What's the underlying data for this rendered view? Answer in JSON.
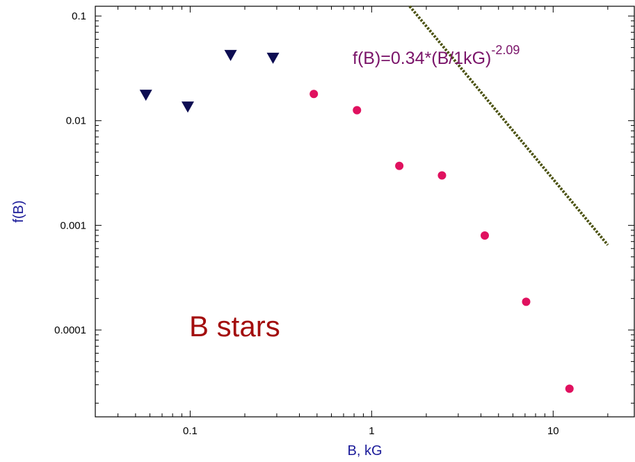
{
  "chart_data": {
    "type": "scatter",
    "title": "",
    "xlabel": "B, kG",
    "ylabel": "f(B)",
    "x_scale": "log",
    "y_scale": "log",
    "xlim": [
      0.03,
      28
    ],
    "ylim": [
      1.48e-05,
      0.124
    ],
    "grid": false,
    "x_ticks": [
      {
        "value": 0.1,
        "label": "0.1"
      },
      {
        "value": 1,
        "label": "1"
      },
      {
        "value": 10,
        "label": "10"
      }
    ],
    "y_ticks": [
      {
        "value": 0.1,
        "label": "0.1"
      },
      {
        "value": 0.01,
        "label": "0.01"
      },
      {
        "value": 0.001,
        "label": "0.001"
      },
      {
        "value": 0.0001,
        "label": "0.0001"
      }
    ],
    "series": [
      {
        "marker": "triangle-down",
        "color": "#0d0d52",
        "points": [
          {
            "x": 0.057,
            "y": 0.0175
          },
          {
            "x": 0.097,
            "y": 0.0135
          },
          {
            "x": 0.167,
            "y": 0.042
          },
          {
            "x": 0.286,
            "y": 0.0395
          }
        ]
      },
      {
        "marker": "circle",
        "color": "#e0115f",
        "points": [
          {
            "x": 0.48,
            "y": 0.018
          },
          {
            "x": 0.83,
            "y": 0.0126
          },
          {
            "x": 1.42,
            "y": 0.0037
          },
          {
            "x": 2.44,
            "y": 0.003
          },
          {
            "x": 4.2,
            "y": 0.0008
          },
          {
            "x": 7.1,
            "y": 0.000186
          },
          {
            "x": 12.3,
            "y": 2.75e-05
          }
        ]
      }
    ],
    "fit_line": {
      "amplitude": 0.34,
      "exponent": -2.09,
      "x_range": [
        0.285,
        20
      ],
      "color": "#4b5210",
      "style": "dotted",
      "label_base": "f(B)=0.34*(B/1kG)",
      "label_exponent": "-2.09",
      "label_color": "#7a1469"
    },
    "annotation": {
      "text": "B stars",
      "color": "#a30d0d"
    },
    "colors": {
      "xlabel": "#1a1a99",
      "ylabel": "#1a1a99",
      "axis": "#000000"
    }
  }
}
